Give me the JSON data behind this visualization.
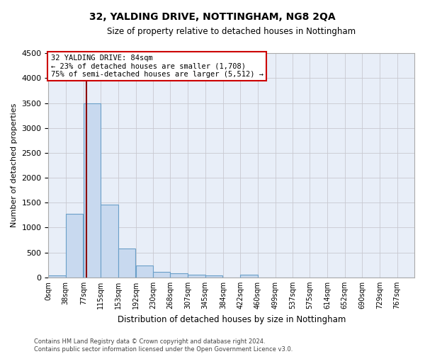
{
  "title": "32, YALDING DRIVE, NOTTINGHAM, NG8 2QA",
  "subtitle": "Size of property relative to detached houses in Nottingham",
  "xlabel": "Distribution of detached houses by size in Nottingham",
  "ylabel": "Number of detached properties",
  "bar_color": "#c8d9ef",
  "bar_edgecolor": "#6a9fc8",
  "background_color": "#e8eef8",
  "grid_color": "#c8c8d0",
  "annotation_line1": "32 YALDING DRIVE: 84sqm",
  "annotation_line2": "← 23% of detached houses are smaller (1,708)",
  "annotation_line3": "75% of semi-detached houses are larger (5,512) →",
  "annotation_box_color": "#cc0000",
  "vline_x": 84,
  "vline_color": "#8b0000",
  "categories": [
    "0sqm",
    "38sqm",
    "77sqm",
    "115sqm",
    "153sqm",
    "192sqm",
    "230sqm",
    "268sqm",
    "307sqm",
    "345sqm",
    "384sqm",
    "422sqm",
    "460sqm",
    "499sqm",
    "537sqm",
    "575sqm",
    "614sqm",
    "652sqm",
    "690sqm",
    "729sqm",
    "767sqm"
  ],
  "bin_edges": [
    0,
    38,
    77,
    115,
    153,
    192,
    230,
    268,
    307,
    345,
    384,
    422,
    460,
    499,
    537,
    575,
    614,
    652,
    690,
    729,
    767
  ],
  "values": [
    40,
    1280,
    3500,
    1460,
    580,
    240,
    115,
    80,
    50,
    45,
    0,
    55,
    0,
    0,
    0,
    0,
    0,
    0,
    0,
    0,
    0
  ],
  "ylim": [
    0,
    4500
  ],
  "yticks": [
    0,
    500,
    1000,
    1500,
    2000,
    2500,
    3000,
    3500,
    4000,
    4500
  ],
  "xlim_max": 805,
  "footer_line1": "Contains HM Land Registry data © Crown copyright and database right 2024.",
  "footer_line2": "Contains public sector information licensed under the Open Government Licence v3.0."
}
